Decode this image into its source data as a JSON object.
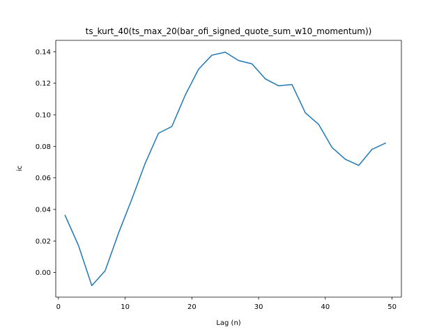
{
  "chart_data": {
    "type": "line",
    "title": "ts_kurt_40(ts_max_20(bar_ofi_signed_quote_sum_w10_momentum))",
    "xlabel": "Lag (n)",
    "ylabel": "ic",
    "xlim": [
      -0.4,
      51.4
    ],
    "ylim": [
      -0.0156,
      0.1472
    ],
    "x_ticks": [
      0,
      10,
      20,
      30,
      40,
      50
    ],
    "x_tick_labels": [
      "0",
      "10",
      "20",
      "30",
      "40",
      "50"
    ],
    "y_ticks": [
      0.0,
      0.02,
      0.04,
      0.06,
      0.08,
      0.1,
      0.12,
      0.14
    ],
    "y_tick_labels": [
      "0.00",
      "0.02",
      "0.04",
      "0.06",
      "0.08",
      "0.10",
      "0.12",
      "0.14"
    ],
    "grid": false,
    "series": [
      {
        "color": "#1f77b4",
        "x": [
          1,
          3,
          5,
          7,
          9,
          11,
          13,
          15,
          17,
          19,
          21,
          23,
          25,
          27,
          29,
          31,
          33,
          35,
          37,
          39,
          41,
          43,
          45,
          47,
          49
        ],
        "y": [
          0.0362,
          0.0172,
          -0.0083,
          0.0011,
          0.0249,
          0.0465,
          0.0692,
          0.0883,
          0.0926,
          0.1124,
          0.1289,
          0.1378,
          0.1397,
          0.1344,
          0.1323,
          0.1228,
          0.1184,
          0.1192,
          0.1013,
          0.0939,
          0.0793,
          0.0718,
          0.0679,
          0.0781,
          0.082
        ]
      }
    ]
  }
}
